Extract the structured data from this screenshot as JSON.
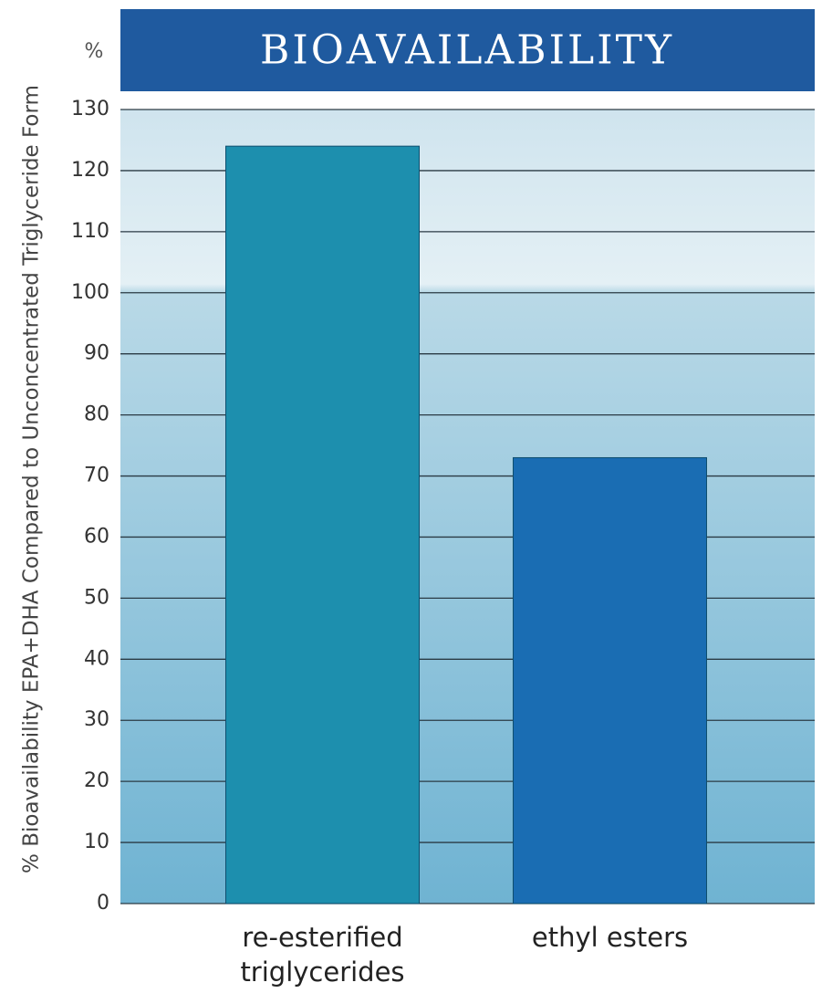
{
  "chart_data": {
    "type": "bar",
    "title": "BIOAVAILABILITY",
    "unit_label": "%",
    "y_label": "% Bioavailability EPA+DHA Compared to Unconcentrated Triglyceride Form",
    "categories": [
      "re-esterified triglycerides",
      "ethyl esters"
    ],
    "values": [
      124,
      73
    ],
    "colors": [
      "#1d8fae",
      "#1a6db3"
    ],
    "ylim": [
      0,
      130
    ],
    "yticks": [
      0,
      10,
      20,
      30,
      40,
      50,
      60,
      70,
      80,
      90,
      100,
      110,
      120,
      130
    ],
    "grid": true
  }
}
